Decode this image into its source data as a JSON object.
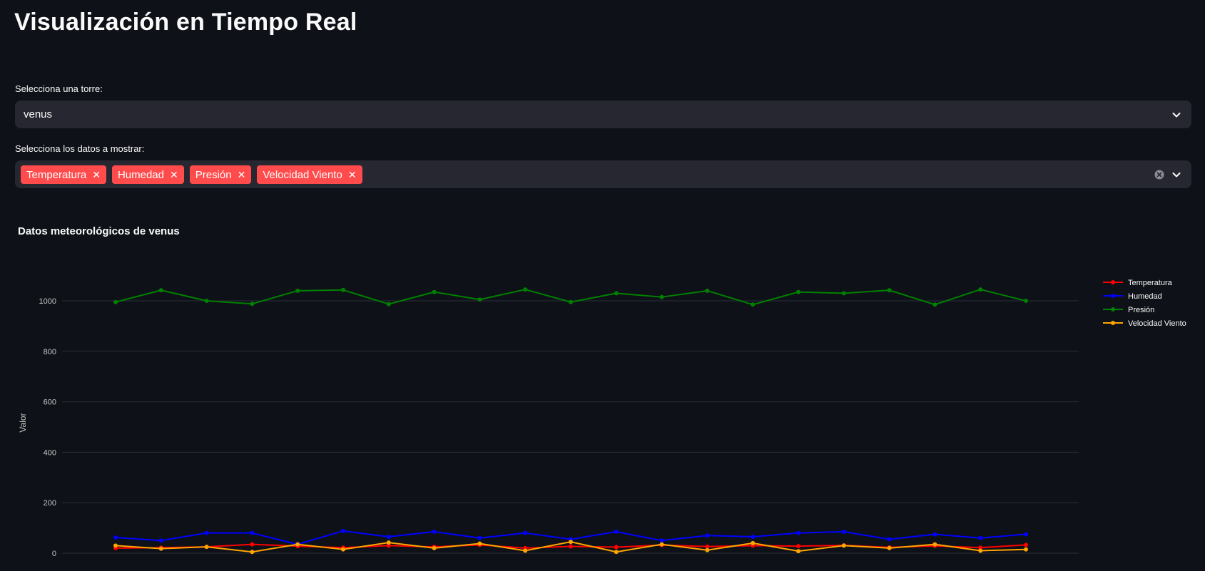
{
  "page": {
    "title": "Visualización en Tiempo Real"
  },
  "tower_select": {
    "label": "Selecciona una torre:",
    "value": "venus"
  },
  "data_select": {
    "label": "Selecciona los datos a mostrar:",
    "tags": [
      "Temperatura",
      "Humedad",
      "Presión",
      "Velocidad Viento"
    ]
  },
  "chart_data": {
    "type": "line",
    "title": "Datos meteorológicos de venus",
    "ylabel": "Valor",
    "xlabel": "",
    "ylim": [
      0,
      1100
    ],
    "yticks": [
      0,
      200,
      400,
      600,
      800,
      1000
    ],
    "xlim": [
      0,
      100
    ],
    "legend": "top-right",
    "grid": true,
    "series": [
      {
        "name": "Temperatura",
        "color": "#ff0000",
        "x": [
          0,
          5,
          10,
          15,
          20,
          25,
          30,
          35,
          40,
          45,
          50,
          55,
          60,
          65,
          70,
          75,
          80,
          85,
          90,
          95,
          100
        ],
        "values": [
          20,
          22,
          25,
          35,
          28,
          22,
          30,
          25,
          33,
          20,
          27,
          24,
          32,
          26,
          30,
          28,
          31,
          23,
          29,
          22,
          33
        ]
      },
      {
        "name": "Humedad",
        "color": "#0000ff",
        "x": [
          0,
          5,
          10,
          15,
          20,
          25,
          30,
          35,
          40,
          45,
          50,
          55,
          60,
          65,
          70,
          75,
          80,
          85,
          90,
          95,
          100
        ],
        "values": [
          62,
          50,
          80,
          80,
          35,
          88,
          65,
          85,
          60,
          80,
          55,
          85,
          50,
          70,
          65,
          80,
          85,
          55,
          75,
          60,
          75
        ]
      },
      {
        "name": "Presión",
        "color": "#008000",
        "x": [
          0,
          5,
          10,
          15,
          20,
          25,
          30,
          35,
          40,
          45,
          50,
          55,
          60,
          65,
          70,
          75,
          80,
          85,
          90,
          95,
          100
        ],
        "values": [
          995,
          1042,
          1000,
          988,
          1040,
          1043,
          987,
          1035,
          1005,
          1045,
          995,
          1030,
          1015,
          1040,
          985,
          1035,
          1030,
          1042,
          985,
          1045,
          1000
        ]
      },
      {
        "name": "Velocidad Viento",
        "color": "#ffa500",
        "x": [
          0,
          5,
          10,
          15,
          20,
          25,
          30,
          35,
          40,
          45,
          50,
          55,
          60,
          65,
          70,
          75,
          80,
          85,
          90,
          95,
          100
        ],
        "values": [
          30,
          18,
          25,
          5,
          35,
          15,
          42,
          20,
          38,
          10,
          45,
          5,
          35,
          12,
          40,
          8,
          30,
          20,
          35,
          10,
          15
        ]
      }
    ]
  }
}
